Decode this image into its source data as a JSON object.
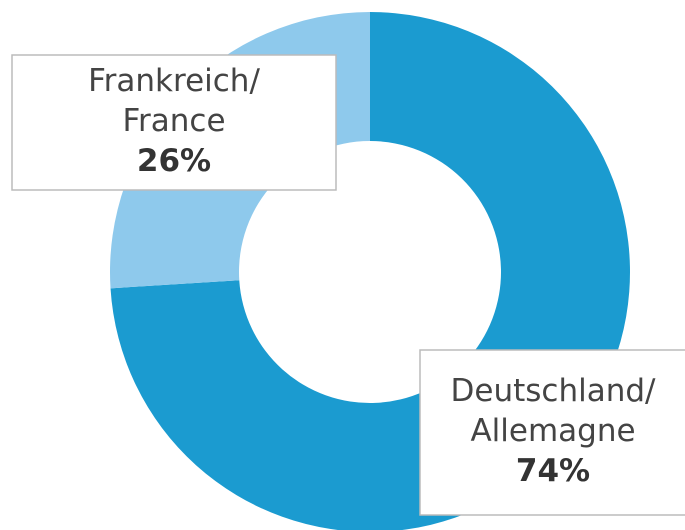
{
  "chart_data": {
    "type": "donut",
    "categories": [
      [
        "Deutschland/",
        "Allemagne"
      ],
      [
        "Frankreich/",
        "France"
      ]
    ],
    "values": [
      74,
      26
    ],
    "value_labels": [
      "74%",
      "26%"
    ],
    "colors": [
      "#1b9bd0",
      "#8ec9ec"
    ]
  }
}
